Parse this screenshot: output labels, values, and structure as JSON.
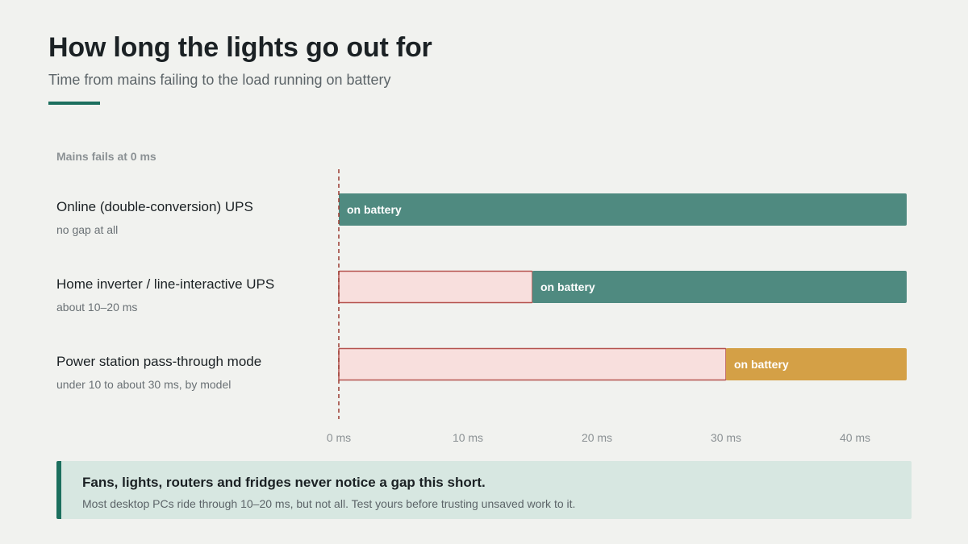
{
  "header": {
    "title": "How long the lights go out for",
    "subtitle": "Time from mains failing to the load running on battery"
  },
  "marker": {
    "label": "Mains fails at 0 ms"
  },
  "chart_data": {
    "type": "bar",
    "orientation": "horizontal-timeline",
    "xlim": [
      0,
      44
    ],
    "x_unit": "ms",
    "x_ticks": [
      0,
      10,
      20,
      30,
      40
    ],
    "x_tick_labels": [
      "0 ms",
      "10 ms",
      "20 ms",
      "30 ms",
      "40 ms"
    ],
    "grid": false,
    "rows": [
      {
        "label": "Online (double-conversion) UPS",
        "note": "no gap at all",
        "gap_ms": 0,
        "end_ms": 44,
        "segment_label": "on battery",
        "battery_color": "#4f8a80"
      },
      {
        "label": "Home inverter / line-interactive UPS",
        "note": "about 10–20 ms",
        "gap_ms": 15,
        "end_ms": 44,
        "segment_label": "on battery",
        "battery_color": "#4f8a80"
      },
      {
        "label": "Power station pass-through mode",
        "note": "under 10 to about 30 ms, by model",
        "gap_ms": 30,
        "end_ms": 44,
        "segment_label": "on battery",
        "battery_color": "#d4a046"
      }
    ],
    "gap_fill_color": "#f8dfdd",
    "gap_stroke_color": "#b5524e",
    "marker_line_color": "#9b3a30"
  },
  "callout": {
    "headline": "Fans, lights, routers and fridges never notice a gap this short.",
    "body": "Most desktop PCs ride through 10–20 ms, but not all. Test yours before trusting unsaved work to it."
  }
}
